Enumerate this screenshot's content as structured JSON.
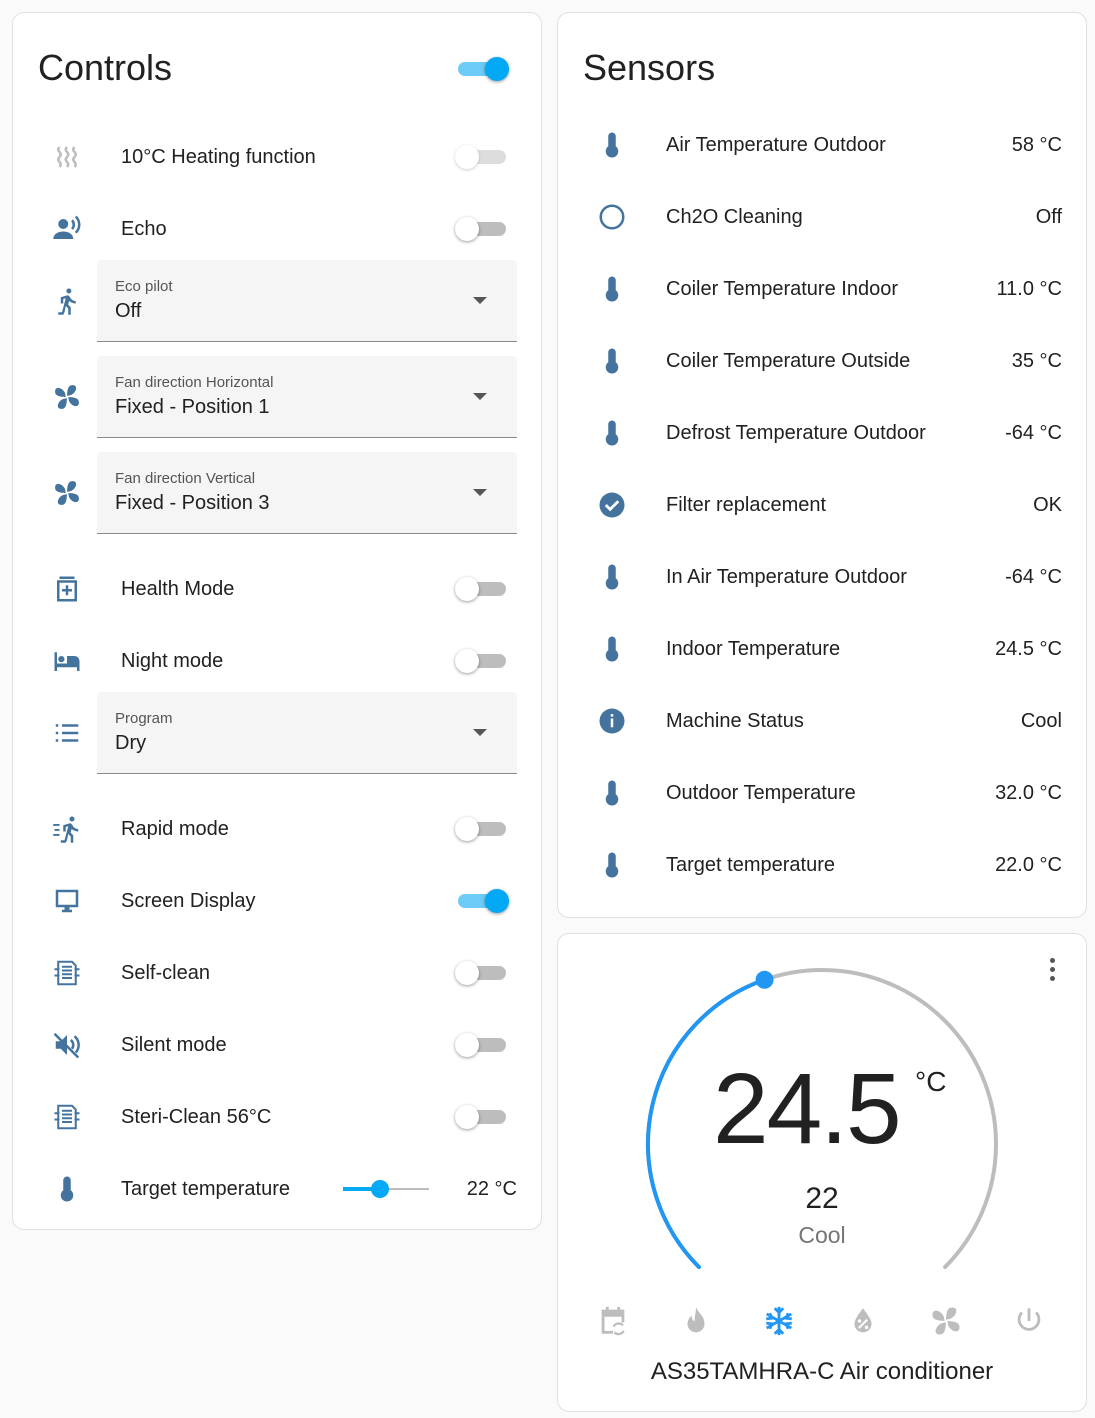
{
  "controls": {
    "title": "Controls",
    "master_on": true,
    "rows": [
      {
        "type": "toggle",
        "icon": "heat-wave-icon",
        "label": "10°C Heating function",
        "on": false,
        "disabled": true
      },
      {
        "type": "toggle",
        "icon": "account-voice-icon",
        "label": "Echo",
        "on": false
      },
      {
        "type": "select",
        "icon": "run-icon",
        "label": "Eco pilot",
        "value": "Off"
      },
      {
        "type": "select",
        "icon": "fan-icon",
        "label": "Fan direction Horizontal",
        "value": "Fixed - Position 1"
      },
      {
        "type": "select",
        "icon": "fan-icon",
        "label": "Fan direction Vertical",
        "value": "Fixed - Position 3"
      },
      {
        "type": "toggle",
        "icon": "medical-bag-icon",
        "label": "Health Mode",
        "on": false
      },
      {
        "type": "toggle",
        "icon": "bed-icon",
        "label": "Night mode",
        "on": false
      },
      {
        "type": "select",
        "icon": "list-icon",
        "label": "Program",
        "value": "Dry"
      },
      {
        "type": "toggle",
        "icon": "run-fast-icon",
        "label": "Rapid mode",
        "on": false
      },
      {
        "type": "toggle",
        "icon": "monitor-icon",
        "label": "Screen Display",
        "on": true
      },
      {
        "type": "toggle",
        "icon": "air-filter-icon",
        "label": "Self-clean",
        "on": false
      },
      {
        "type": "toggle",
        "icon": "volume-off-icon",
        "label": "Silent mode",
        "on": false
      },
      {
        "type": "toggle",
        "icon": "air-filter-icon",
        "label": "Steri-Clean 56°C",
        "on": false
      },
      {
        "type": "slider",
        "icon": "thermometer-icon",
        "label": "Target temperature",
        "value": "22 °C",
        "level": 0.43
      }
    ]
  },
  "sensors": {
    "title": "Sensors",
    "rows": [
      {
        "icon": "thermometer-icon",
        "label": "Air Temperature Outdoor",
        "value": "58 °C"
      },
      {
        "icon": "circle-outline-icon",
        "label": "Ch2O Cleaning",
        "value": "Off"
      },
      {
        "icon": "thermometer-icon",
        "label": "Coiler Temperature Indoor",
        "value": "11.0 °C"
      },
      {
        "icon": "thermometer-icon",
        "label": "Coiler Temperature Outside",
        "value": "35 °C"
      },
      {
        "icon": "thermometer-icon",
        "label": "Defrost Temperature Outdoor",
        "value": "-64 °C"
      },
      {
        "icon": "check-circle-icon",
        "label": "Filter replacement",
        "value": "OK"
      },
      {
        "icon": "thermometer-icon",
        "label": "In Air Temperature Outdoor",
        "value": "-64 °C"
      },
      {
        "icon": "thermometer-icon",
        "label": "Indoor Temperature",
        "value": "24.5 °C"
      },
      {
        "icon": "information-icon",
        "label": "Machine Status",
        "value": "Cool"
      },
      {
        "icon": "thermometer-icon",
        "label": "Outdoor Temperature",
        "value": "32.0 °C"
      },
      {
        "icon": "thermometer-icon",
        "label": "Target temperature",
        "value": "22.0 °C"
      }
    ]
  },
  "thermostat": {
    "current": "24.5",
    "unit": "°C",
    "target": "22",
    "target_value": 22,
    "min": 16,
    "max": 30,
    "mode": "Cool",
    "name": "AS35TAMHRA-C Air conditioner",
    "modes": [
      {
        "icon": "calendar-sync-icon",
        "active": false
      },
      {
        "icon": "fire-icon",
        "active": false
      },
      {
        "icon": "snowflake-icon",
        "active": true
      },
      {
        "icon": "water-percent-icon",
        "active": false
      },
      {
        "icon": "fan-icon",
        "active": false
      },
      {
        "icon": "power-icon",
        "active": false
      }
    ],
    "accent": "#2196f3"
  },
  "colors": {
    "icon": "#44739e",
    "toggle_on": "#03a9f4"
  }
}
